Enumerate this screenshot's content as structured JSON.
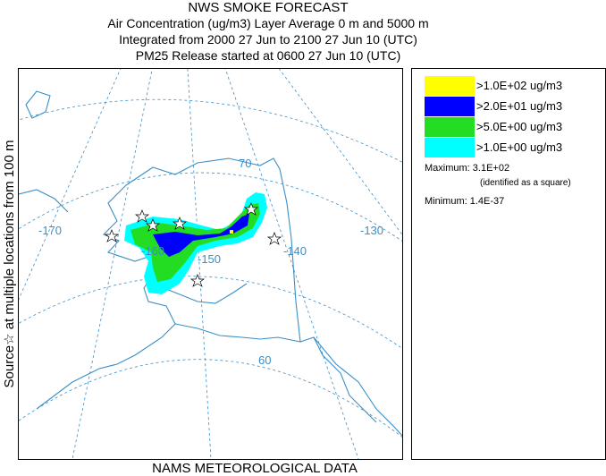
{
  "header": {
    "title": "NWS SMOKE FORECAST",
    "line1": "Air Concentration (ug/m3) Layer Average    0 m and  5000 m",
    "line2": "Integrated from 2000 27 Jun to 2100 27 Jun 10 (UTC)",
    "line3": "PM25 Release started at 0600 27 Jun 10 (UTC)"
  },
  "side_label": "Source☆ at multiple locations   from   100 m",
  "footer": "NAMS METEOROLOGICAL DATA",
  "map": {
    "lon_labels": [
      "-170",
      "-160",
      "-150",
      "-140",
      "-130"
    ],
    "lat_labels": [
      "70",
      "60"
    ],
    "colors": {
      "land": "#3a8fc7",
      "grid": "#3a8fc7"
    }
  },
  "legend": {
    "items": [
      {
        "label": ">1.0E+02 ug/m3",
        "color": "#ffff00"
      },
      {
        "label": ">2.0E+01 ug/m3",
        "color": "#0000ff"
      },
      {
        "label": ">5.0E+00 ug/m3",
        "color": "#22dd22"
      },
      {
        "label": ">1.0E+00 ug/m3",
        "color": "#00ffff"
      }
    ],
    "maximum_label": "Maximum: 3.1E+02",
    "maximum_note": "(identified as a square)",
    "minimum_label": "Minimum: 1.4E-37"
  }
}
